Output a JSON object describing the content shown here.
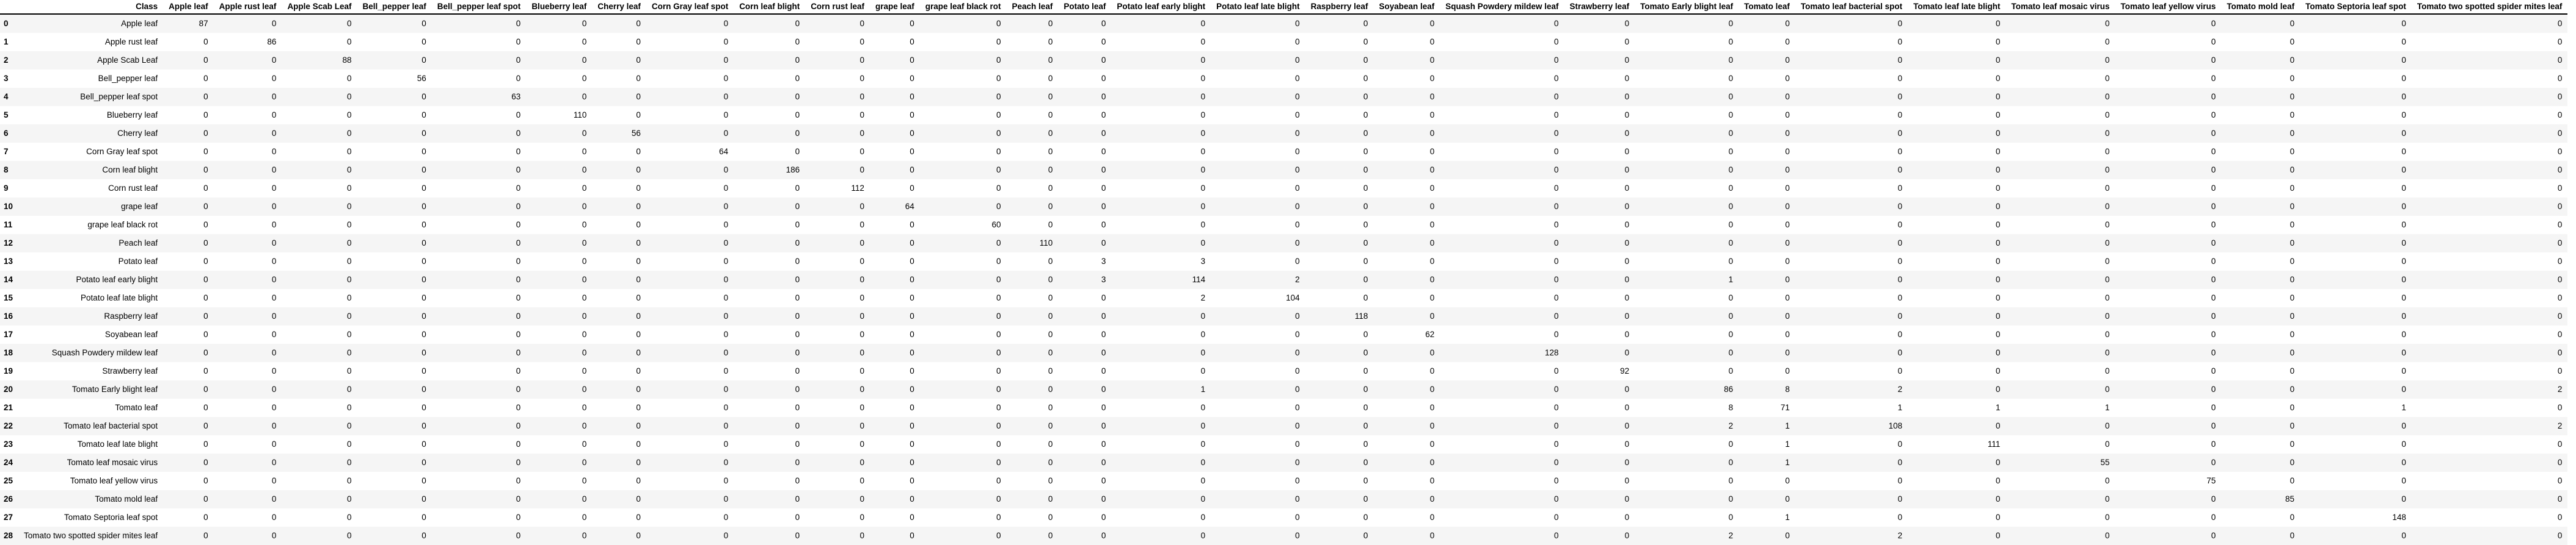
{
  "table": {
    "columns": [
      "Class",
      "Apple leaf",
      "Apple rust leaf",
      "Apple Scab Leaf",
      "Bell_pepper leaf",
      "Bell_pepper leaf spot",
      "Blueberry leaf",
      "Cherry leaf",
      "Corn Gray leaf spot",
      "Corn leaf blight",
      "Corn rust leaf",
      "grape leaf",
      "grape leaf black rot",
      "Peach leaf",
      "Potato leaf",
      "Potato leaf early blight",
      "Potato leaf late blight",
      "Raspberry leaf",
      "Soyabean leaf",
      "Squash Powdery mildew leaf",
      "Strawberry leaf",
      "Tomato Early blight leaf",
      "Tomato leaf",
      "Tomato leaf bacterial spot",
      "Tomato leaf late blight",
      "Tomato leaf mosaic virus",
      "Tomato leaf yellow virus",
      "Tomato mold leaf",
      "Tomato Septoria leaf spot",
      "Tomato two spotted spider mites leaf"
    ],
    "rows": [
      {
        "index": "0",
        "values": [
          "Apple leaf",
          "87",
          "0",
          "0",
          "0",
          "0",
          "0",
          "0",
          "0",
          "0",
          "0",
          "0",
          "0",
          "0",
          "0",
          "0",
          "0",
          "0",
          "0",
          "0",
          "0",
          "0",
          "0",
          "0",
          "0",
          "0",
          "0",
          "0",
          "0",
          "0"
        ]
      },
      {
        "index": "1",
        "values": [
          "Apple rust leaf",
          "0",
          "86",
          "0",
          "0",
          "0",
          "0",
          "0",
          "0",
          "0",
          "0",
          "0",
          "0",
          "0",
          "0",
          "0",
          "0",
          "0",
          "0",
          "0",
          "0",
          "0",
          "0",
          "0",
          "0",
          "0",
          "0",
          "0",
          "0",
          "0"
        ]
      },
      {
        "index": "2",
        "values": [
          "Apple Scab Leaf",
          "0",
          "0",
          "88",
          "0",
          "0",
          "0",
          "0",
          "0",
          "0",
          "0",
          "0",
          "0",
          "0",
          "0",
          "0",
          "0",
          "0",
          "0",
          "0",
          "0",
          "0",
          "0",
          "0",
          "0",
          "0",
          "0",
          "0",
          "0",
          "0"
        ]
      },
      {
        "index": "3",
        "values": [
          "Bell_pepper leaf",
          "0",
          "0",
          "0",
          "56",
          "0",
          "0",
          "0",
          "0",
          "0",
          "0",
          "0",
          "0",
          "0",
          "0",
          "0",
          "0",
          "0",
          "0",
          "0",
          "0",
          "0",
          "0",
          "0",
          "0",
          "0",
          "0",
          "0",
          "0",
          "0"
        ]
      },
      {
        "index": "4",
        "values": [
          "Bell_pepper leaf spot",
          "0",
          "0",
          "0",
          "0",
          "63",
          "0",
          "0",
          "0",
          "0",
          "0",
          "0",
          "0",
          "0",
          "0",
          "0",
          "0",
          "0",
          "0",
          "0",
          "0",
          "0",
          "0",
          "0",
          "0",
          "0",
          "0",
          "0",
          "0",
          "0"
        ]
      },
      {
        "index": "5",
        "values": [
          "Blueberry leaf",
          "0",
          "0",
          "0",
          "0",
          "0",
          "110",
          "0",
          "0",
          "0",
          "0",
          "0",
          "0",
          "0",
          "0",
          "0",
          "0",
          "0",
          "0",
          "0",
          "0",
          "0",
          "0",
          "0",
          "0",
          "0",
          "0",
          "0",
          "0",
          "0"
        ]
      },
      {
        "index": "6",
        "values": [
          "Cherry leaf",
          "0",
          "0",
          "0",
          "0",
          "0",
          "0",
          "56",
          "0",
          "0",
          "0",
          "0",
          "0",
          "0",
          "0",
          "0",
          "0",
          "0",
          "0",
          "0",
          "0",
          "0",
          "0",
          "0",
          "0",
          "0",
          "0",
          "0",
          "0",
          "0"
        ]
      },
      {
        "index": "7",
        "values": [
          "Corn Gray leaf spot",
          "0",
          "0",
          "0",
          "0",
          "0",
          "0",
          "0",
          "64",
          "0",
          "0",
          "0",
          "0",
          "0",
          "0",
          "0",
          "0",
          "0",
          "0",
          "0",
          "0",
          "0",
          "0",
          "0",
          "0",
          "0",
          "0",
          "0",
          "0",
          "0"
        ]
      },
      {
        "index": "8",
        "values": [
          "Corn leaf blight",
          "0",
          "0",
          "0",
          "0",
          "0",
          "0",
          "0",
          "0",
          "186",
          "0",
          "0",
          "0",
          "0",
          "0",
          "0",
          "0",
          "0",
          "0",
          "0",
          "0",
          "0",
          "0",
          "0",
          "0",
          "0",
          "0",
          "0",
          "0",
          "0"
        ]
      },
      {
        "index": "9",
        "values": [
          "Corn rust leaf",
          "0",
          "0",
          "0",
          "0",
          "0",
          "0",
          "0",
          "0",
          "0",
          "112",
          "0",
          "0",
          "0",
          "0",
          "0",
          "0",
          "0",
          "0",
          "0",
          "0",
          "0",
          "0",
          "0",
          "0",
          "0",
          "0",
          "0",
          "0",
          "0"
        ]
      },
      {
        "index": "10",
        "values": [
          "grape leaf",
          "0",
          "0",
          "0",
          "0",
          "0",
          "0",
          "0",
          "0",
          "0",
          "0",
          "64",
          "0",
          "0",
          "0",
          "0",
          "0",
          "0",
          "0",
          "0",
          "0",
          "0",
          "0",
          "0",
          "0",
          "0",
          "0",
          "0",
          "0",
          "0"
        ]
      },
      {
        "index": "11",
        "values": [
          "grape leaf black rot",
          "0",
          "0",
          "0",
          "0",
          "0",
          "0",
          "0",
          "0",
          "0",
          "0",
          "0",
          "60",
          "0",
          "0",
          "0",
          "0",
          "0",
          "0",
          "0",
          "0",
          "0",
          "0",
          "0",
          "0",
          "0",
          "0",
          "0",
          "0",
          "0"
        ]
      },
      {
        "index": "12",
        "values": [
          "Peach leaf",
          "0",
          "0",
          "0",
          "0",
          "0",
          "0",
          "0",
          "0",
          "0",
          "0",
          "0",
          "0",
          "110",
          "0",
          "0",
          "0",
          "0",
          "0",
          "0",
          "0",
          "0",
          "0",
          "0",
          "0",
          "0",
          "0",
          "0",
          "0",
          "0"
        ]
      },
      {
        "index": "13",
        "values": [
          "Potato leaf",
          "0",
          "0",
          "0",
          "0",
          "0",
          "0",
          "0",
          "0",
          "0",
          "0",
          "0",
          "0",
          "0",
          "3",
          "3",
          "0",
          "0",
          "0",
          "0",
          "0",
          "0",
          "0",
          "0",
          "0",
          "0",
          "0",
          "0",
          "0",
          "0"
        ]
      },
      {
        "index": "14",
        "values": [
          "Potato leaf early blight",
          "0",
          "0",
          "0",
          "0",
          "0",
          "0",
          "0",
          "0",
          "0",
          "0",
          "0",
          "0",
          "0",
          "3",
          "114",
          "2",
          "0",
          "0",
          "0",
          "0",
          "1",
          "0",
          "0",
          "0",
          "0",
          "0",
          "0",
          "0",
          "0"
        ]
      },
      {
        "index": "15",
        "values": [
          "Potato leaf late blight",
          "0",
          "0",
          "0",
          "0",
          "0",
          "0",
          "0",
          "0",
          "0",
          "0",
          "0",
          "0",
          "0",
          "0",
          "2",
          "104",
          "0",
          "0",
          "0",
          "0",
          "0",
          "0",
          "0",
          "0",
          "0",
          "0",
          "0",
          "0",
          "0"
        ]
      },
      {
        "index": "16",
        "values": [
          "Raspberry leaf",
          "0",
          "0",
          "0",
          "0",
          "0",
          "0",
          "0",
          "0",
          "0",
          "0",
          "0",
          "0",
          "0",
          "0",
          "0",
          "0",
          "118",
          "0",
          "0",
          "0",
          "0",
          "0",
          "0",
          "0",
          "0",
          "0",
          "0",
          "0",
          "0"
        ]
      },
      {
        "index": "17",
        "values": [
          "Soyabean leaf",
          "0",
          "0",
          "0",
          "0",
          "0",
          "0",
          "0",
          "0",
          "0",
          "0",
          "0",
          "0",
          "0",
          "0",
          "0",
          "0",
          "0",
          "62",
          "0",
          "0",
          "0",
          "0",
          "0",
          "0",
          "0",
          "0",
          "0",
          "0",
          "0"
        ]
      },
      {
        "index": "18",
        "values": [
          "Squash Powdery mildew leaf",
          "0",
          "0",
          "0",
          "0",
          "0",
          "0",
          "0",
          "0",
          "0",
          "0",
          "0",
          "0",
          "0",
          "0",
          "0",
          "0",
          "0",
          "0",
          "128",
          "0",
          "0",
          "0",
          "0",
          "0",
          "0",
          "0",
          "0",
          "0",
          "0"
        ]
      },
      {
        "index": "19",
        "values": [
          "Strawberry leaf",
          "0",
          "0",
          "0",
          "0",
          "0",
          "0",
          "0",
          "0",
          "0",
          "0",
          "0",
          "0",
          "0",
          "0",
          "0",
          "0",
          "0",
          "0",
          "0",
          "92",
          "0",
          "0",
          "0",
          "0",
          "0",
          "0",
          "0",
          "0",
          "0"
        ]
      },
      {
        "index": "20",
        "values": [
          "Tomato Early blight leaf",
          "0",
          "0",
          "0",
          "0",
          "0",
          "0",
          "0",
          "0",
          "0",
          "0",
          "0",
          "0",
          "0",
          "0",
          "1",
          "0",
          "0",
          "0",
          "0",
          "0",
          "86",
          "8",
          "2",
          "0",
          "0",
          "0",
          "0",
          "0",
          "2"
        ]
      },
      {
        "index": "21",
        "values": [
          "Tomato leaf",
          "0",
          "0",
          "0",
          "0",
          "0",
          "0",
          "0",
          "0",
          "0",
          "0",
          "0",
          "0",
          "0",
          "0",
          "0",
          "0",
          "0",
          "0",
          "0",
          "0",
          "8",
          "71",
          "1",
          "1",
          "1",
          "0",
          "0",
          "1",
          "0"
        ]
      },
      {
        "index": "22",
        "values": [
          "Tomato leaf bacterial spot",
          "0",
          "0",
          "0",
          "0",
          "0",
          "0",
          "0",
          "0",
          "0",
          "0",
          "0",
          "0",
          "0",
          "0",
          "0",
          "0",
          "0",
          "0",
          "0",
          "0",
          "2",
          "1",
          "108",
          "0",
          "0",
          "0",
          "0",
          "0",
          "2"
        ]
      },
      {
        "index": "23",
        "values": [
          "Tomato leaf late blight",
          "0",
          "0",
          "0",
          "0",
          "0",
          "0",
          "0",
          "0",
          "0",
          "0",
          "0",
          "0",
          "0",
          "0",
          "0",
          "0",
          "0",
          "0",
          "0",
          "0",
          "0",
          "1",
          "0",
          "111",
          "0",
          "0",
          "0",
          "0",
          "0"
        ]
      },
      {
        "index": "24",
        "values": [
          "Tomato leaf mosaic virus",
          "0",
          "0",
          "0",
          "0",
          "0",
          "0",
          "0",
          "0",
          "0",
          "0",
          "0",
          "0",
          "0",
          "0",
          "0",
          "0",
          "0",
          "0",
          "0",
          "0",
          "0",
          "1",
          "0",
          "0",
          "55",
          "0",
          "0",
          "0",
          "0"
        ]
      },
      {
        "index": "25",
        "values": [
          "Tomato leaf yellow virus",
          "0",
          "0",
          "0",
          "0",
          "0",
          "0",
          "0",
          "0",
          "0",
          "0",
          "0",
          "0",
          "0",
          "0",
          "0",
          "0",
          "0",
          "0",
          "0",
          "0",
          "0",
          "0",
          "0",
          "0",
          "0",
          "75",
          "0",
          "0",
          "0"
        ]
      },
      {
        "index": "26",
        "values": [
          "Tomato mold leaf",
          "0",
          "0",
          "0",
          "0",
          "0",
          "0",
          "0",
          "0",
          "0",
          "0",
          "0",
          "0",
          "0",
          "0",
          "0",
          "0",
          "0",
          "0",
          "0",
          "0",
          "0",
          "0",
          "0",
          "0",
          "0",
          "0",
          "85",
          "0",
          "0"
        ]
      },
      {
        "index": "27",
        "values": [
          "Tomato Septoria leaf spot",
          "0",
          "0",
          "0",
          "0",
          "0",
          "0",
          "0",
          "0",
          "0",
          "0",
          "0",
          "0",
          "0",
          "0",
          "0",
          "0",
          "0",
          "0",
          "0",
          "0",
          "0",
          "1",
          "0",
          "0",
          "0",
          "0",
          "0",
          "148",
          "0"
        ]
      },
      {
        "index": "28",
        "values": [
          "Tomato two spotted spider mites leaf",
          "0",
          "0",
          "0",
          "0",
          "0",
          "0",
          "0",
          "0",
          "0",
          "0",
          "0",
          "0",
          "0",
          "0",
          "0",
          "0",
          "0",
          "0",
          "0",
          "0",
          "2",
          "0",
          "2",
          "0",
          "0",
          "0",
          "0",
          "0",
          "0"
        ]
      }
    ]
  }
}
